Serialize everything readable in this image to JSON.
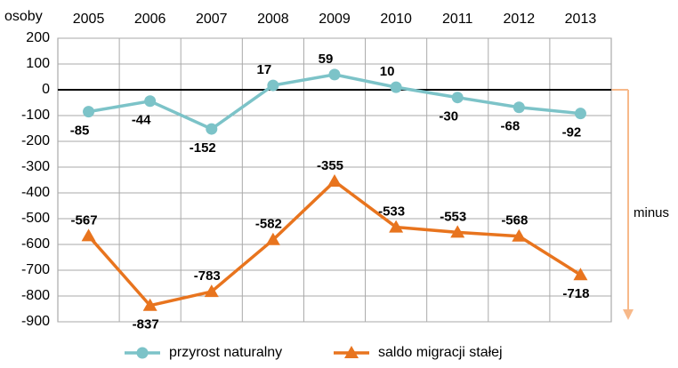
{
  "chart_data": {
    "type": "line",
    "y_label": "osoby",
    "annotation": "minus",
    "categories": [
      "2005",
      "2006",
      "2007",
      "2008",
      "2009",
      "2010",
      "2011",
      "2012",
      "2013"
    ],
    "series": [
      {
        "name": "przyrost naturalny",
        "color": "#7cc3c8",
        "marker": "circle",
        "values": [
          -85,
          -44,
          -152,
          17,
          59,
          10,
          -30,
          -68,
          -92
        ]
      },
      {
        "name": "saldo migracji stałej",
        "color": "#e8741e",
        "marker": "triangle",
        "values": [
          -567,
          -837,
          -783,
          -582,
          -355,
          -533,
          -553,
          -568,
          -718
        ]
      }
    ],
    "ylim": [
      -900,
      200
    ],
    "yticks": [
      200,
      100,
      0,
      -100,
      -200,
      -300,
      -400,
      -500,
      -600,
      -700,
      -800,
      -900
    ],
    "grid": true
  }
}
